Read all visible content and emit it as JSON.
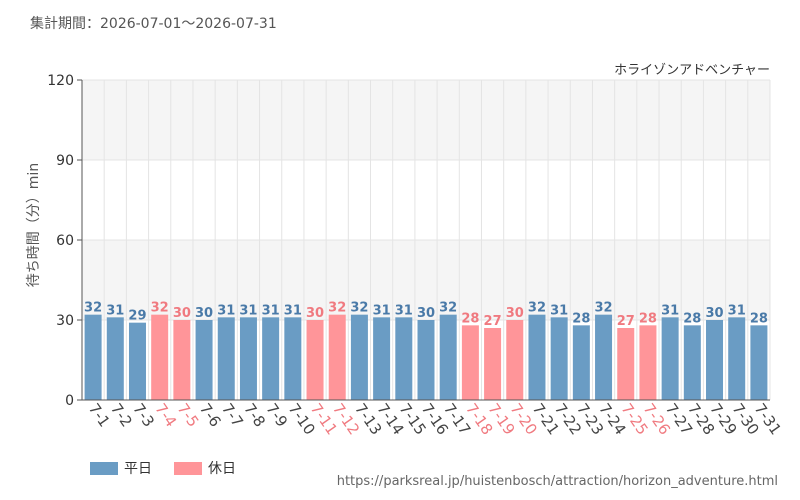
{
  "header": {
    "period": "集計期間：2026-07-01～2026-07-31"
  },
  "legend": {
    "weekday": "平日",
    "holiday": "休日"
  },
  "footer": {
    "url": "https://parksreal.jp/huistenbosch/attraction/horizon_adventure.html"
  },
  "colors": {
    "weekday": "#6a9cc4",
    "weekday_text": "#4a7aa8",
    "holiday": "#ff9599",
    "holiday_text": "#f07a80",
    "band": "#f5f5f5",
    "grid": "#e4e4e4"
  },
  "chart_data": {
    "type": "bar",
    "title": "ホライゾンアドベンチャー",
    "ylabel": "待ち時間（分）min",
    "ylim": [
      0,
      120
    ],
    "yticks": [
      0,
      30,
      60,
      90,
      120
    ],
    "categories": [
      "7-1",
      "7-2",
      "7-3",
      "7-4",
      "7-5",
      "7-6",
      "7-7",
      "7-8",
      "7-9",
      "7-10",
      "7-11",
      "7-12",
      "7-13",
      "7-14",
      "7-15",
      "7-16",
      "7-17",
      "7-18",
      "7-19",
      "7-20",
      "7-21",
      "7-22",
      "7-23",
      "7-24",
      "7-25",
      "7-26",
      "7-27",
      "7-28",
      "7-29",
      "7-30",
      "7-31"
    ],
    "values": [
      32,
      31,
      29,
      32,
      30,
      30,
      31,
      31,
      31,
      31,
      30,
      32,
      32,
      31,
      31,
      30,
      32,
      28,
      27,
      30,
      32,
      31,
      28,
      32,
      27,
      28,
      31,
      28,
      30,
      31,
      28
    ],
    "day_type": [
      "weekday",
      "weekday",
      "weekday",
      "holiday",
      "holiday",
      "weekday",
      "weekday",
      "weekday",
      "weekday",
      "weekday",
      "holiday",
      "holiday",
      "weekday",
      "weekday",
      "weekday",
      "weekday",
      "weekday",
      "holiday",
      "holiday",
      "holiday",
      "weekday",
      "weekday",
      "weekday",
      "weekday",
      "holiday",
      "holiday",
      "weekday",
      "weekday",
      "weekday",
      "weekday",
      "weekday"
    ],
    "grid": true,
    "legend_position": "bottom-left"
  }
}
